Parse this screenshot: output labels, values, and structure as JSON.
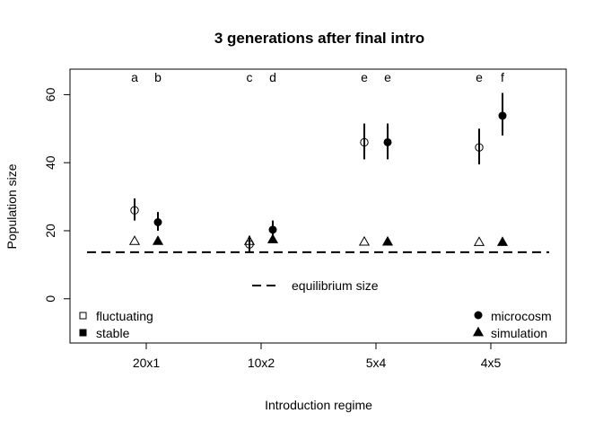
{
  "chart_data": {
    "type": "scatter",
    "title": "3 generations after final intro",
    "xlabel": "Introduction regime",
    "ylabel": "Population size",
    "categories": [
      "20x1",
      "10x2",
      "5x4",
      "4x5"
    ],
    "ylim": [
      -13,
      67.5
    ],
    "yticks": [
      0,
      20,
      40,
      60
    ],
    "grid": false,
    "series": [
      {
        "name": "fluctuating",
        "source": "microcosm",
        "marker": "open-circle",
        "filled": false,
        "values": [
          26,
          16,
          46,
          44.5
        ],
        "low": [
          23,
          13.5,
          41,
          39.5
        ],
        "high": [
          29.5,
          18.5,
          51.5,
          50
        ]
      },
      {
        "name": "stable",
        "source": "microcosm",
        "marker": "filled-circle",
        "filled": true,
        "values": [
          22.5,
          20.3,
          46,
          53.8
        ],
        "low": [
          20,
          17.5,
          41,
          48
        ],
        "high": [
          25.5,
          23,
          51.5,
          60.5
        ]
      },
      {
        "name": "fluctuating",
        "source": "simulation",
        "marker": "open-triangle",
        "filled": false,
        "values": [
          17,
          17,
          16.8,
          16.7
        ]
      },
      {
        "name": "stable",
        "source": "simulation",
        "marker": "filled-triangle",
        "filled": true,
        "values": [
          17,
          17.5,
          16.8,
          16.7
        ]
      }
    ],
    "equilibrium": {
      "label": "equilibrium size",
      "value": 13.7
    },
    "letters": [
      {
        "category": 0,
        "fluctuating": "a",
        "stable": "b"
      },
      {
        "category": 1,
        "fluctuating": "c",
        "stable": "d"
      },
      {
        "category": 2,
        "fluctuating": "e",
        "stable": "e"
      },
      {
        "category": 3,
        "fluctuating": "e",
        "stable": "f"
      }
    ],
    "legend_left": {
      "placement": "bottom-left",
      "items": [
        "fluctuating",
        "stable"
      ]
    },
    "legend_right": {
      "placement": "bottom-right",
      "items": [
        "microcosm",
        "simulation"
      ]
    },
    "legend_center": {
      "placement": "bottom-center",
      "items": [
        "equilibrium size"
      ]
    }
  }
}
